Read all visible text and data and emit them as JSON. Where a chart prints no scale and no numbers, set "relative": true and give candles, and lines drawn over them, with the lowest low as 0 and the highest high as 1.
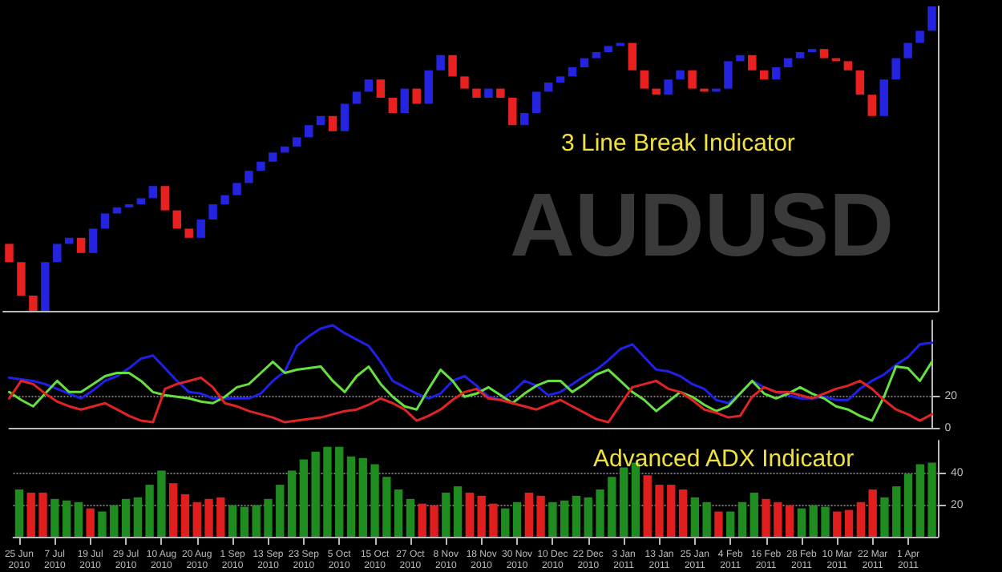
{
  "chart_data": [
    {
      "type": "candlestick",
      "relative": true,
      "tick_labels": false,
      "grid": false,
      "annotations": [
        "AUDUSD",
        "3 Line Break Indicator"
      ],
      "categories": [
        null,
        null,
        null,
        null,
        null,
        null,
        null,
        null,
        null,
        null,
        null,
        null,
        null,
        null,
        null,
        null,
        null,
        null,
        null,
        null,
        null,
        null,
        null,
        null,
        null,
        null,
        null,
        null,
        null,
        null,
        null,
        null,
        null,
        null,
        null,
        null,
        null,
        null,
        null,
        null,
        null,
        null,
        null,
        null,
        null,
        null,
        null,
        null,
        null,
        null,
        null,
        null,
        null,
        null,
        null,
        null,
        null,
        null,
        null,
        null,
        null,
        null,
        null,
        null,
        null,
        null,
        null,
        null,
        null,
        null,
        null,
        null,
        null,
        null,
        null,
        null,
        null,
        null
      ],
      "ohlc": [
        [
          0.22,
          0.22,
          0.16,
          0.16
        ],
        [
          0.16,
          0.16,
          0.05,
          0.05
        ],
        [
          0.05,
          0.05,
          0,
          0
        ],
        [
          0,
          0.16,
          0,
          0.16
        ],
        [
          0.16,
          0.22,
          0.16,
          0.22
        ],
        [
          0.22,
          0.24,
          0.22,
          0.24
        ],
        [
          0.24,
          0.24,
          0.19,
          0.19
        ],
        [
          0.19,
          0.27,
          0.19,
          0.27
        ],
        [
          0.27,
          0.32,
          0.27,
          0.32
        ],
        [
          0.32,
          0.34,
          0.32,
          0.34
        ],
        [
          0.34,
          0.35,
          0.34,
          0.35
        ],
        [
          0.35,
          0.37,
          0.35,
          0.37
        ],
        [
          0.37,
          0.41,
          0.37,
          0.41
        ],
        [
          0.41,
          0.41,
          0.33,
          0.33
        ],
        [
          0.33,
          0.33,
          0.27,
          0.27
        ],
        [
          0.27,
          0.27,
          0.24,
          0.24
        ],
        [
          0.24,
          0.3,
          0.24,
          0.3
        ],
        [
          0.3,
          0.35,
          0.3,
          0.35
        ],
        [
          0.35,
          0.38,
          0.35,
          0.38
        ],
        [
          0.38,
          0.42,
          0.38,
          0.42
        ],
        [
          0.42,
          0.46,
          0.42,
          0.46
        ],
        [
          0.46,
          0.49,
          0.46,
          0.49
        ],
        [
          0.49,
          0.52,
          0.49,
          0.52
        ],
        [
          0.52,
          0.54,
          0.52,
          0.54
        ],
        [
          0.54,
          0.57,
          0.54,
          0.57
        ],
        [
          0.57,
          0.61,
          0.57,
          0.61
        ],
        [
          0.61,
          0.64,
          0.61,
          0.64
        ],
        [
          0.64,
          0.64,
          0.59,
          0.59
        ],
        [
          0.59,
          0.68,
          0.59,
          0.68
        ],
        [
          0.68,
          0.72,
          0.68,
          0.72
        ],
        [
          0.72,
          0.76,
          0.72,
          0.76
        ],
        [
          0.76,
          0.76,
          0.7,
          0.7
        ],
        [
          0.7,
          0.7,
          0.65,
          0.65
        ],
        [
          0.65,
          0.73,
          0.65,
          0.73
        ],
        [
          0.73,
          0.73,
          0.68,
          0.68
        ],
        [
          0.68,
          0.79,
          0.68,
          0.79
        ],
        [
          0.79,
          0.84,
          0.79,
          0.84
        ],
        [
          0.84,
          0.84,
          0.77,
          0.77
        ],
        [
          0.77,
          0.77,
          0.73,
          0.73
        ],
        [
          0.73,
          0.73,
          0.7,
          0.7
        ],
        [
          0.7,
          0.73,
          0.7,
          0.73
        ],
        [
          0.73,
          0.73,
          0.7,
          0.7
        ],
        [
          0.7,
          0.7,
          0.61,
          0.61
        ],
        [
          0.61,
          0.65,
          0.61,
          0.65
        ],
        [
          0.65,
          0.72,
          0.65,
          0.72
        ],
        [
          0.72,
          0.75,
          0.72,
          0.75
        ],
        [
          0.75,
          0.77,
          0.75,
          0.77
        ],
        [
          0.77,
          0.8,
          0.77,
          0.8
        ],
        [
          0.8,
          0.83,
          0.8,
          0.83
        ],
        [
          0.83,
          0.85,
          0.83,
          0.85
        ],
        [
          0.85,
          0.87,
          0.85,
          0.87
        ],
        [
          0.87,
          0.88,
          0.87,
          0.88
        ],
        [
          0.88,
          0.88,
          0.79,
          0.79
        ],
        [
          0.79,
          0.79,
          0.73,
          0.73
        ],
        [
          0.73,
          0.73,
          0.71,
          0.71
        ],
        [
          0.71,
          0.76,
          0.71,
          0.76
        ],
        [
          0.76,
          0.79,
          0.76,
          0.79
        ],
        [
          0.79,
          0.79,
          0.73,
          0.73
        ],
        [
          0.73,
          0.73,
          0.72,
          0.72
        ],
        [
          0.72,
          0.73,
          0.72,
          0.73
        ],
        [
          0.73,
          0.82,
          0.73,
          0.82
        ],
        [
          0.82,
          0.84,
          0.82,
          0.84
        ],
        [
          0.84,
          0.84,
          0.79,
          0.79
        ],
        [
          0.79,
          0.79,
          0.76,
          0.76
        ],
        [
          0.76,
          0.8,
          0.76,
          0.8
        ],
        [
          0.8,
          0.83,
          0.8,
          0.83
        ],
        [
          0.83,
          0.85,
          0.83,
          0.85
        ],
        [
          0.85,
          0.86,
          0.85,
          0.86
        ],
        [
          0.86,
          0.86,
          0.83,
          0.83
        ],
        [
          0.83,
          0.83,
          0.82,
          0.82
        ],
        [
          0.82,
          0.82,
          0.79,
          0.79
        ],
        [
          0.79,
          0.79,
          0.71,
          0.71
        ],
        [
          0.71,
          0.71,
          0.64,
          0.64
        ],
        [
          0.64,
          0.76,
          0.64,
          0.76
        ],
        [
          0.76,
          0.83,
          0.76,
          0.83
        ],
        [
          0.83,
          0.88,
          0.83,
          0.88
        ],
        [
          0.88,
          0.92,
          0.88,
          0.92
        ],
        [
          0.92,
          1,
          0.92,
          1
        ]
      ],
      "colors": [
        "#e82020",
        "#e82020",
        "#e82020",
        "#2424e0",
        "#2424e0",
        "#2424e0",
        "#e82020",
        "#2424e0",
        "#2424e0",
        "#2424e0",
        "#2424e0",
        "#2424e0",
        "#2424e0",
        "#e82020",
        "#e82020",
        "#e82020",
        "#2424e0",
        "#2424e0",
        "#2424e0",
        "#2424e0",
        "#2424e0",
        "#2424e0",
        "#2424e0",
        "#2424e0",
        "#2424e0",
        "#2424e0",
        "#2424e0",
        "#e82020",
        "#2424e0",
        "#2424e0",
        "#2424e0",
        "#e82020",
        "#e82020",
        "#2424e0",
        "#e82020",
        "#2424e0",
        "#2424e0",
        "#e82020",
        "#e82020",
        "#e82020",
        "#2424e0",
        "#e82020",
        "#e82020",
        "#2424e0",
        "#2424e0",
        "#2424e0",
        "#2424e0",
        "#2424e0",
        "#2424e0",
        "#2424e0",
        "#2424e0",
        "#2424e0",
        "#e82020",
        "#e82020",
        "#e82020",
        "#2424e0",
        "#2424e0",
        "#e82020",
        "#e82020",
        "#2424e0",
        "#2424e0",
        "#2424e0",
        "#e82020",
        "#e82020",
        "#2424e0",
        "#2424e0",
        "#2424e0",
        "#2424e0",
        "#e82020",
        "#e82020",
        "#e82020",
        "#e82020",
        "#e82020",
        "#2424e0",
        "#2424e0",
        "#2424e0",
        "#2424e0",
        "#2424e0"
      ]
    },
    {
      "type": "line",
      "tick_labels": "y",
      "grid": "y",
      "line_style": "solid",
      "ylim": [
        0,
        68
      ],
      "yticks": [
        0,
        20
      ],
      "categories": [
        null,
        null,
        null,
        null,
        null,
        null,
        null,
        null,
        null,
        null,
        null,
        null,
        null,
        null,
        null,
        null,
        null,
        null,
        null,
        null,
        null,
        null,
        null,
        null,
        null,
        null,
        null,
        null,
        null,
        null,
        null,
        null,
        null,
        null,
        null,
        null,
        null,
        null,
        null,
        null,
        null,
        null,
        null,
        null,
        null,
        null,
        null,
        null,
        null,
        null,
        null,
        null,
        null,
        null,
        null,
        null,
        null,
        null,
        null,
        null,
        null,
        null,
        null,
        null,
        null,
        null,
        null,
        null,
        null,
        null,
        null,
        null,
        null,
        null,
        null,
        null,
        null,
        null
      ],
      "series": [
        {
          "color": "#2020e8",
          "values": [
            32,
            31,
            30,
            28,
            25,
            22,
            19,
            24,
            30,
            33,
            38,
            44,
            46,
            38,
            30,
            23,
            22,
            19,
            19,
            19,
            19,
            22,
            30,
            36,
            52,
            58,
            63,
            65,
            60,
            56,
            52,
            42,
            30,
            26,
            22,
            19,
            22,
            30,
            33,
            27,
            20,
            18,
            23,
            30,
            27,
            21,
            23,
            28,
            33,
            37,
            43,
            50,
            53,
            45,
            37,
            36,
            33,
            28,
            25,
            18,
            16,
            22,
            30,
            26,
            23,
            21,
            19,
            19,
            20,
            18,
            18,
            25,
            30,
            34,
            40,
            45,
            53,
            54
          ]
        },
        {
          "color": "#66e040",
          "values": [
            23,
            18,
            14,
            22,
            30,
            23,
            23,
            28,
            33,
            35,
            35,
            30,
            23,
            21,
            20,
            19,
            17,
            16,
            20,
            26,
            28,
            35,
            42,
            35,
            37,
            38,
            39,
            30,
            23,
            33,
            39,
            28,
            20,
            14,
            12,
            25,
            37,
            30,
            20,
            22,
            26,
            21,
            16,
            22,
            27,
            30,
            30,
            23,
            28,
            34,
            37,
            30,
            23,
            18,
            11,
            17,
            23,
            20,
            15,
            11,
            14,
            22,
            30,
            22,
            19,
            22,
            26,
            22,
            19,
            14,
            12,
            8,
            5,
            20,
            39,
            38,
            30,
            42
          ]
        },
        {
          "color": "#e02424",
          "values": [
            19,
            30,
            28,
            22,
            17,
            14,
            12,
            14,
            16,
            12,
            8,
            5,
            4,
            25,
            28,
            30,
            32,
            26,
            16,
            14,
            11,
            9,
            7,
            4,
            5,
            6,
            7,
            9,
            11,
            12,
            15,
            19,
            16,
            12,
            5,
            8,
            12,
            18,
            23,
            25,
            19,
            18,
            16,
            14,
            12,
            15,
            18,
            14,
            10,
            6,
            4,
            15,
            26,
            28,
            30,
            25,
            23,
            18,
            12,
            10,
            7,
            8,
            20,
            26,
            23,
            23,
            21,
            19,
            22,
            25,
            27,
            30,
            25,
            18,
            12,
            9,
            5,
            9
          ]
        }
      ]
    },
    {
      "type": "bar",
      "grid": "y",
      "ylim": [
        0,
        61
      ],
      "yticks": [
        20,
        40
      ],
      "annotations": [
        "Advanced ADX Indicator"
      ],
      "categories": [
        "25 Jun 2010",
        null,
        null,
        "7 Jul 2010",
        null,
        null,
        "19 Jul 2010",
        null,
        null,
        "29 Jul 2010",
        null,
        null,
        "10 Aug 2010",
        null,
        null,
        "20 Aug 2010",
        null,
        null,
        "1 Sep 2010",
        null,
        null,
        "13 Sep 2010",
        null,
        null,
        "23 Sep 2010",
        null,
        null,
        "5 Oct 2010",
        null,
        null,
        "15 Oct 2010",
        null,
        null,
        "27 Oct 2010",
        null,
        null,
        "8 Nov 2010",
        null,
        null,
        "18 Nov 2010",
        null,
        null,
        "30 Nov 2010",
        null,
        null,
        "10 Dec 2010",
        null,
        null,
        "22 Dec 2010",
        null,
        null,
        "3 Jan 2011",
        null,
        null,
        "13 Jan 2011",
        null,
        null,
        "25 Jan 2011",
        null,
        null,
        "4 Feb 2011",
        null,
        null,
        "16 Feb 2011",
        null,
        null,
        "28 Feb 2011",
        null,
        null,
        "10 Mar 2011",
        null,
        null,
        "22 Mar 2011",
        null,
        null,
        "1 Apr 2011",
        null,
        null
      ],
      "values": [
        30,
        28,
        28,
        24,
        23,
        22,
        18,
        16,
        20,
        24,
        25,
        33,
        42,
        34,
        27,
        22,
        24,
        25,
        20,
        19,
        20,
        24,
        33,
        42,
        49,
        54,
        57,
        57,
        51,
        50,
        46,
        38,
        30,
        24,
        21,
        20,
        28,
        32,
        28,
        26,
        21,
        18,
        22,
        28,
        26,
        22,
        23,
        26,
        25,
        30,
        38,
        44,
        47,
        39,
        33,
        33,
        30,
        25,
        22,
        16,
        16,
        22,
        28,
        24,
        22,
        20,
        18,
        20,
        19,
        16,
        17,
        22,
        30,
        25,
        32,
        40,
        46,
        47
      ],
      "colors": [
        "#1e8c1e",
        "#e01e1e",
        "#e01e1e",
        "#1e8c1e",
        "#1e8c1e",
        "#1e8c1e",
        "#e01e1e",
        "#1e8c1e",
        "#1e8c1e",
        "#1e8c1e",
        "#1e8c1e",
        "#1e8c1e",
        "#1e8c1e",
        "#e01e1e",
        "#e01e1e",
        "#e01e1e",
        "#e01e1e",
        "#e01e1e",
        "#1e8c1e",
        "#1e8c1e",
        "#1e8c1e",
        "#1e8c1e",
        "#1e8c1e",
        "#1e8c1e",
        "#1e8c1e",
        "#1e8c1e",
        "#1e8c1e",
        "#1e8c1e",
        "#1e8c1e",
        "#1e8c1e",
        "#1e8c1e",
        "#1e8c1e",
        "#1e8c1e",
        "#1e8c1e",
        "#e01e1e",
        "#e01e1e",
        "#1e8c1e",
        "#1e8c1e",
        "#e01e1e",
        "#e01e1e",
        "#e01e1e",
        "#1e8c1e",
        "#1e8c1e",
        "#e01e1e",
        "#e01e1e",
        "#1e8c1e",
        "#1e8c1e",
        "#1e8c1e",
        "#1e8c1e",
        "#1e8c1e",
        "#1e8c1e",
        "#1e8c1e",
        "#1e8c1e",
        "#e01e1e",
        "#e01e1e",
        "#e01e1e",
        "#e01e1e",
        "#1e8c1e",
        "#1e8c1e",
        "#e01e1e",
        "#1e8c1e",
        "#1e8c1e",
        "#1e8c1e",
        "#e01e1e",
        "#e01e1e",
        "#e01e1e",
        "#1e8c1e",
        "#1e8c1e",
        "#1e8c1e",
        "#e01e1e",
        "#e01e1e",
        "#e01e1e",
        "#e01e1e",
        "#1e8c1e",
        "#1e8c1e",
        "#1e8c1e",
        "#1e8c1e",
        "#1e8c1e"
      ]
    }
  ]
}
